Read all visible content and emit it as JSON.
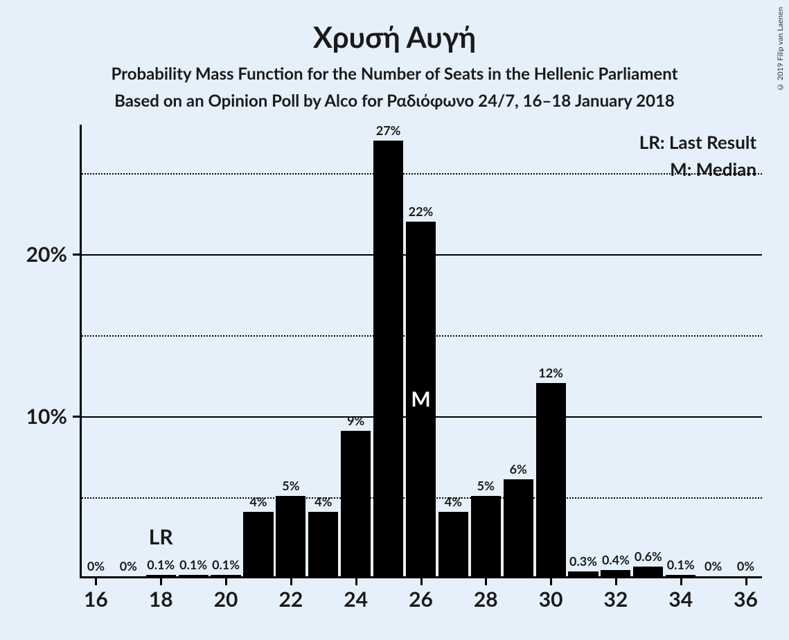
{
  "title": "Χρυσή Αυγή",
  "subtitle1": "Probability Mass Function for the Number of Seats in the Hellenic Parliament",
  "subtitle2": "Based on an Opinion Poll by Alco for Ραδιόφωνο 24/7, 16–18 January 2018",
  "legend": {
    "lr": "LR: Last Result",
    "m": "M: Median"
  },
  "copyright": "© 2019 Filip van Laenen",
  "chart": {
    "type": "bar",
    "background_color": "#e6f0fa",
    "bar_color": "#000000",
    "text_color": "#1a1a1a",
    "grid_color": "#000000",
    "x_range": [
      16,
      36
    ],
    "x_ticks": [
      16,
      18,
      20,
      22,
      24,
      26,
      28,
      30,
      32,
      34,
      36
    ],
    "y_range": [
      0,
      28
    ],
    "y_major_ticks": [
      10,
      20
    ],
    "y_minor_gridlines": [
      5,
      15,
      25
    ],
    "y_label_suffix": "%",
    "bar_width_ratio": 0.92,
    "lr_position": 18,
    "median_position": 26,
    "lr_label": "LR",
    "median_label": "M",
    "title_fontsize": 42,
    "subtitle_fontsize": 24,
    "axis_label_fontsize": 30,
    "bar_label_fontsize": 18,
    "legend_fontsize": 26,
    "data": [
      {
        "x": 16,
        "value": 0,
        "label": "0%"
      },
      {
        "x": 17,
        "value": 0,
        "label": "0%"
      },
      {
        "x": 18,
        "value": 0.1,
        "label": "0.1%"
      },
      {
        "x": 19,
        "value": 0.1,
        "label": "0.1%"
      },
      {
        "x": 20,
        "value": 0.1,
        "label": "0.1%"
      },
      {
        "x": 21,
        "value": 4,
        "label": "4%"
      },
      {
        "x": 22,
        "value": 5,
        "label": "5%"
      },
      {
        "x": 23,
        "value": 4,
        "label": "4%"
      },
      {
        "x": 24,
        "value": 9,
        "label": "9%"
      },
      {
        "x": 25,
        "value": 27,
        "label": "27%"
      },
      {
        "x": 26,
        "value": 22,
        "label": "22%"
      },
      {
        "x": 27,
        "value": 4,
        "label": "4%"
      },
      {
        "x": 28,
        "value": 5,
        "label": "5%"
      },
      {
        "x": 29,
        "value": 6,
        "label": "6%"
      },
      {
        "x": 30,
        "value": 12,
        "label": "12%"
      },
      {
        "x": 31,
        "value": 0.3,
        "label": "0.3%"
      },
      {
        "x": 32,
        "value": 0.4,
        "label": "0.4%"
      },
      {
        "x": 33,
        "value": 0.6,
        "label": "0.6%"
      },
      {
        "x": 34,
        "value": 0.1,
        "label": "0.1%"
      },
      {
        "x": 35,
        "value": 0,
        "label": "0%"
      },
      {
        "x": 36,
        "value": 0,
        "label": "0%"
      }
    ]
  }
}
